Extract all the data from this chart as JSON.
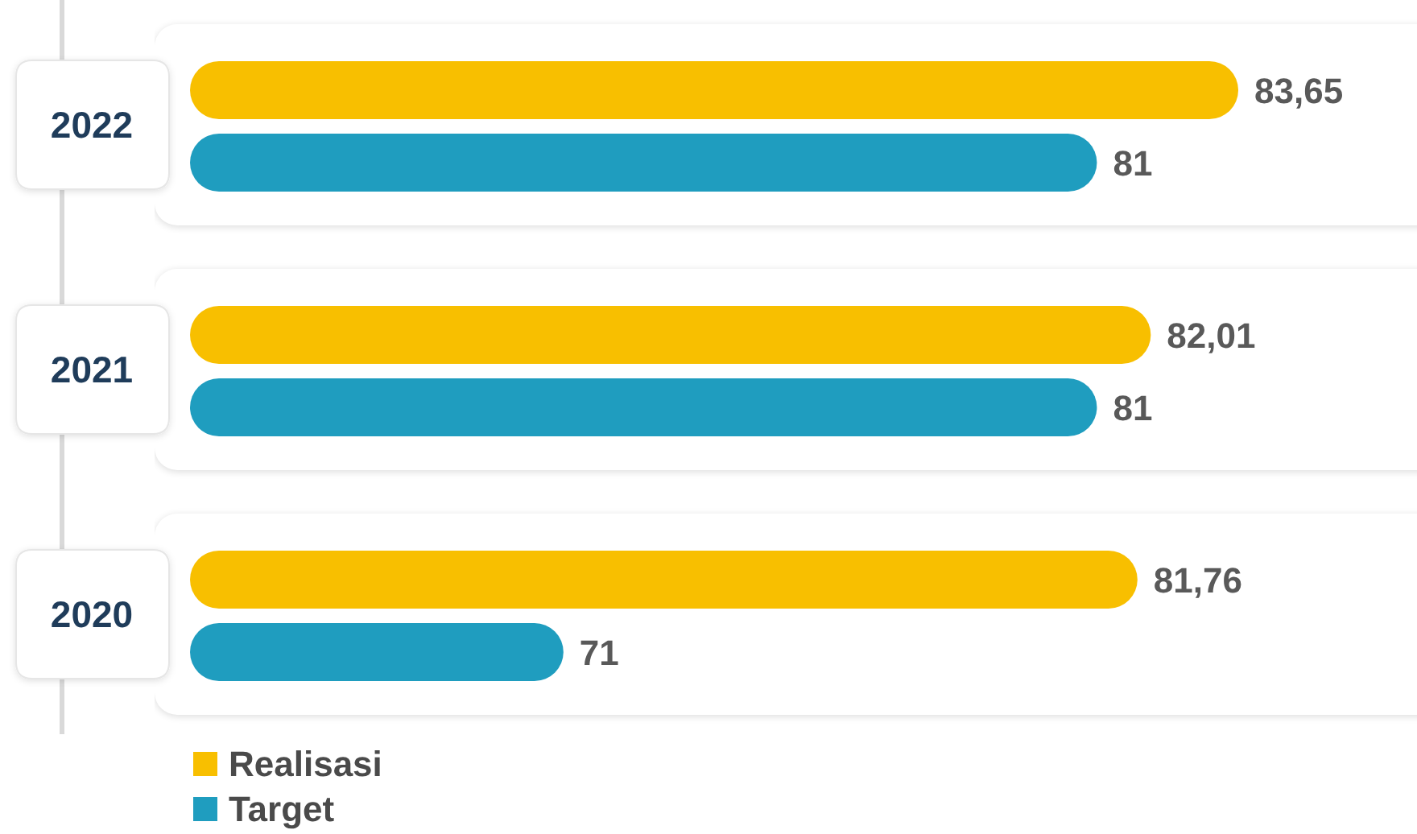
{
  "chart_data": {
    "type": "bar",
    "orientation": "horizontal",
    "categories": [
      "2022",
      "2021",
      "2020"
    ],
    "series": [
      {
        "name": "Realisasi",
        "color": "#f8bf00",
        "values": [
          83.65,
          82.01,
          81.76
        ],
        "value_labels": [
          "83,65",
          "82,01",
          "81,76"
        ]
      },
      {
        "name": "Target",
        "color": "#1f9dbf",
        "values": [
          81,
          81,
          71
        ],
        "value_labels": [
          "81",
          "81",
          "71"
        ]
      }
    ],
    "xlim": [
      64,
      87
    ],
    "tick_labels": "y",
    "legend": "bottom left"
  }
}
